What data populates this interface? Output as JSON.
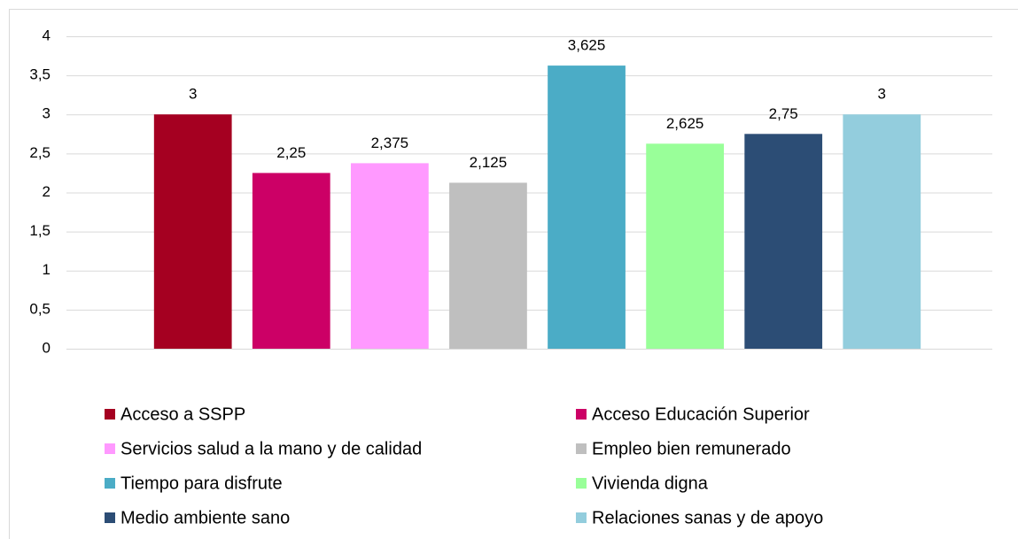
{
  "chart_data": {
    "type": "bar",
    "categories": [
      null
    ],
    "series": [
      {
        "name": "Acceso a SSPP",
        "color": "#a50021",
        "values": [
          3
        ],
        "value_labels": [
          "3"
        ]
      },
      {
        "name": "Acceso Educación Superior",
        "color": "#cc0066",
        "values": [
          2.25
        ],
        "value_labels": [
          "2,25"
        ]
      },
      {
        "name": "Servicios salud a la mano y de calidad",
        "color": "#ff99ff",
        "values": [
          2.375
        ],
        "value_labels": [
          "2,375"
        ]
      },
      {
        "name": "Empleo bien remunerado",
        "color": "#bfbfbf",
        "values": [
          2.125
        ],
        "value_labels": [
          "2,125"
        ]
      },
      {
        "name": "Tiempo para disfrute",
        "color": "#4bacc6",
        "values": [
          3.625
        ],
        "value_labels": [
          "3,625"
        ]
      },
      {
        "name": "Vivienda digna",
        "color": "#99ff99",
        "values": [
          2.625
        ],
        "value_labels": [
          "2,625"
        ]
      },
      {
        "name": "Medio ambiente sano",
        "color": "#2c4d75",
        "values": [
          2.75
        ],
        "value_labels": [
          "2,75"
        ]
      },
      {
        "name": "Relaciones sanas y de apoyo",
        "color": "#93cddd",
        "values": [
          3
        ],
        "value_labels": [
          "3"
        ]
      }
    ],
    "ylim": [
      0,
      4
    ],
    "yticks": [
      0,
      {
        "value": 0.5,
        "label": "0,5"
      },
      1,
      {
        "value": 1.5,
        "label": "1,5"
      },
      2,
      {
        "value": 2.5,
        "label": "2,5"
      },
      3,
      {
        "value": 3.5,
        "label": "3,5"
      },
      4
    ],
    "grid": true,
    "legend": "bottom"
  }
}
